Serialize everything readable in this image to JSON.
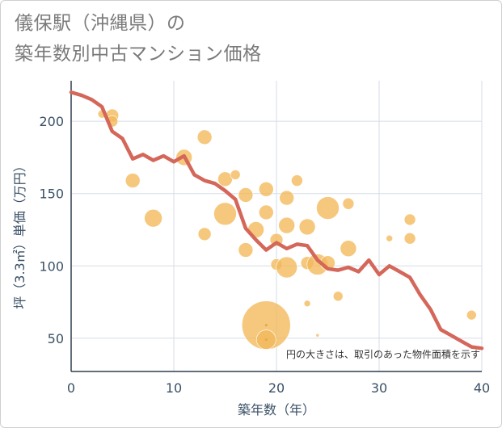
{
  "chart_data": {
    "type": "scatter",
    "title_lines": [
      "儀保駅（沖縄県）の",
      "築年数別中古マンション価格"
    ],
    "xlabel": "築年数（年）",
    "ylabel": "坪（3.3㎡）単価（万円）",
    "xlim": [
      0,
      40
    ],
    "ylim": [
      27,
      228
    ],
    "x_ticks": [
      0,
      10,
      20,
      30,
      40
    ],
    "y_ticks": [
      50,
      100,
      150,
      200
    ],
    "grid": true,
    "annotation": "円の大きさは、取引のあった物件面積を示す",
    "colors": {
      "bubble": "#f2b95a",
      "line": "#d4675a",
      "grid": "#d5dde6",
      "text": "#3a5066"
    },
    "series": [
      {
        "type": "bubble",
        "points": [
          {
            "x": 3,
            "y": 205,
            "r": 5
          },
          {
            "x": 4,
            "y": 204,
            "r": 8
          },
          {
            "x": 4,
            "y": 200,
            "r": 7
          },
          {
            "x": 6,
            "y": 159,
            "r": 9
          },
          {
            "x": 8,
            "y": 133,
            "r": 11
          },
          {
            "x": 11,
            "y": 175,
            "r": 10
          },
          {
            "x": 13,
            "y": 189,
            "r": 9
          },
          {
            "x": 13,
            "y": 122,
            "r": 8
          },
          {
            "x": 15,
            "y": 160,
            "r": 9
          },
          {
            "x": 15,
            "y": 136,
            "r": 14
          },
          {
            "x": 16,
            "y": 163,
            "r": 6
          },
          {
            "x": 17,
            "y": 149,
            "r": 9
          },
          {
            "x": 17,
            "y": 111,
            "r": 9
          },
          {
            "x": 18,
            "y": 125,
            "r": 10
          },
          {
            "x": 19,
            "y": 153,
            "r": 9
          },
          {
            "x": 19,
            "y": 137,
            "r": 9
          },
          {
            "x": 19,
            "y": 59,
            "r": 30
          },
          {
            "x": 19,
            "y": 49,
            "r": 12
          },
          {
            "x": 20,
            "y": 118,
            "r": 8
          },
          {
            "x": 20,
            "y": 101,
            "r": 7
          },
          {
            "x": 21,
            "y": 147,
            "r": 9
          },
          {
            "x": 21,
            "y": 128,
            "r": 10
          },
          {
            "x": 21,
            "y": 99,
            "r": 13
          },
          {
            "x": 22,
            "y": 159,
            "r": 7
          },
          {
            "x": 23,
            "y": 127,
            "r": 10
          },
          {
            "x": 23,
            "y": 102,
            "r": 8
          },
          {
            "x": 23,
            "y": 74,
            "r": 4
          },
          {
            "x": 24,
            "y": 52,
            "r": 2
          },
          {
            "x": 24,
            "y": 101,
            "r": 13
          },
          {
            "x": 25,
            "y": 140,
            "r": 14
          },
          {
            "x": 25,
            "y": 102,
            "r": 9
          },
          {
            "x": 26,
            "y": 79,
            "r": 6
          },
          {
            "x": 27,
            "y": 143,
            "r": 7
          },
          {
            "x": 27,
            "y": 112,
            "r": 10
          },
          {
            "x": 31,
            "y": 119,
            "r": 4
          },
          {
            "x": 33,
            "y": 132,
            "r": 7
          },
          {
            "x": 33,
            "y": 119,
            "r": 7
          },
          {
            "x": 39,
            "y": 66,
            "r": 6
          }
        ]
      },
      {
        "type": "line",
        "x": [
          0,
          1,
          2,
          3,
          4,
          5,
          6,
          7,
          8,
          9,
          10,
          11,
          12,
          13,
          14,
          15,
          16,
          17,
          18,
          19,
          20,
          21,
          22,
          23,
          24,
          25,
          26,
          27,
          28,
          29,
          30,
          31,
          32,
          33,
          34,
          35,
          36,
          37,
          38,
          39,
          40
        ],
        "y": [
          220,
          218,
          215,
          210,
          193,
          188,
          174,
          177,
          173,
          176,
          172,
          176,
          163,
          159,
          157,
          152,
          146,
          126,
          118,
          111,
          116,
          112,
          115,
          114,
          104,
          98,
          97,
          99,
          96,
          104,
          94,
          100,
          96,
          92,
          80,
          70,
          56,
          52,
          48,
          44,
          43
        ]
      }
    ]
  }
}
